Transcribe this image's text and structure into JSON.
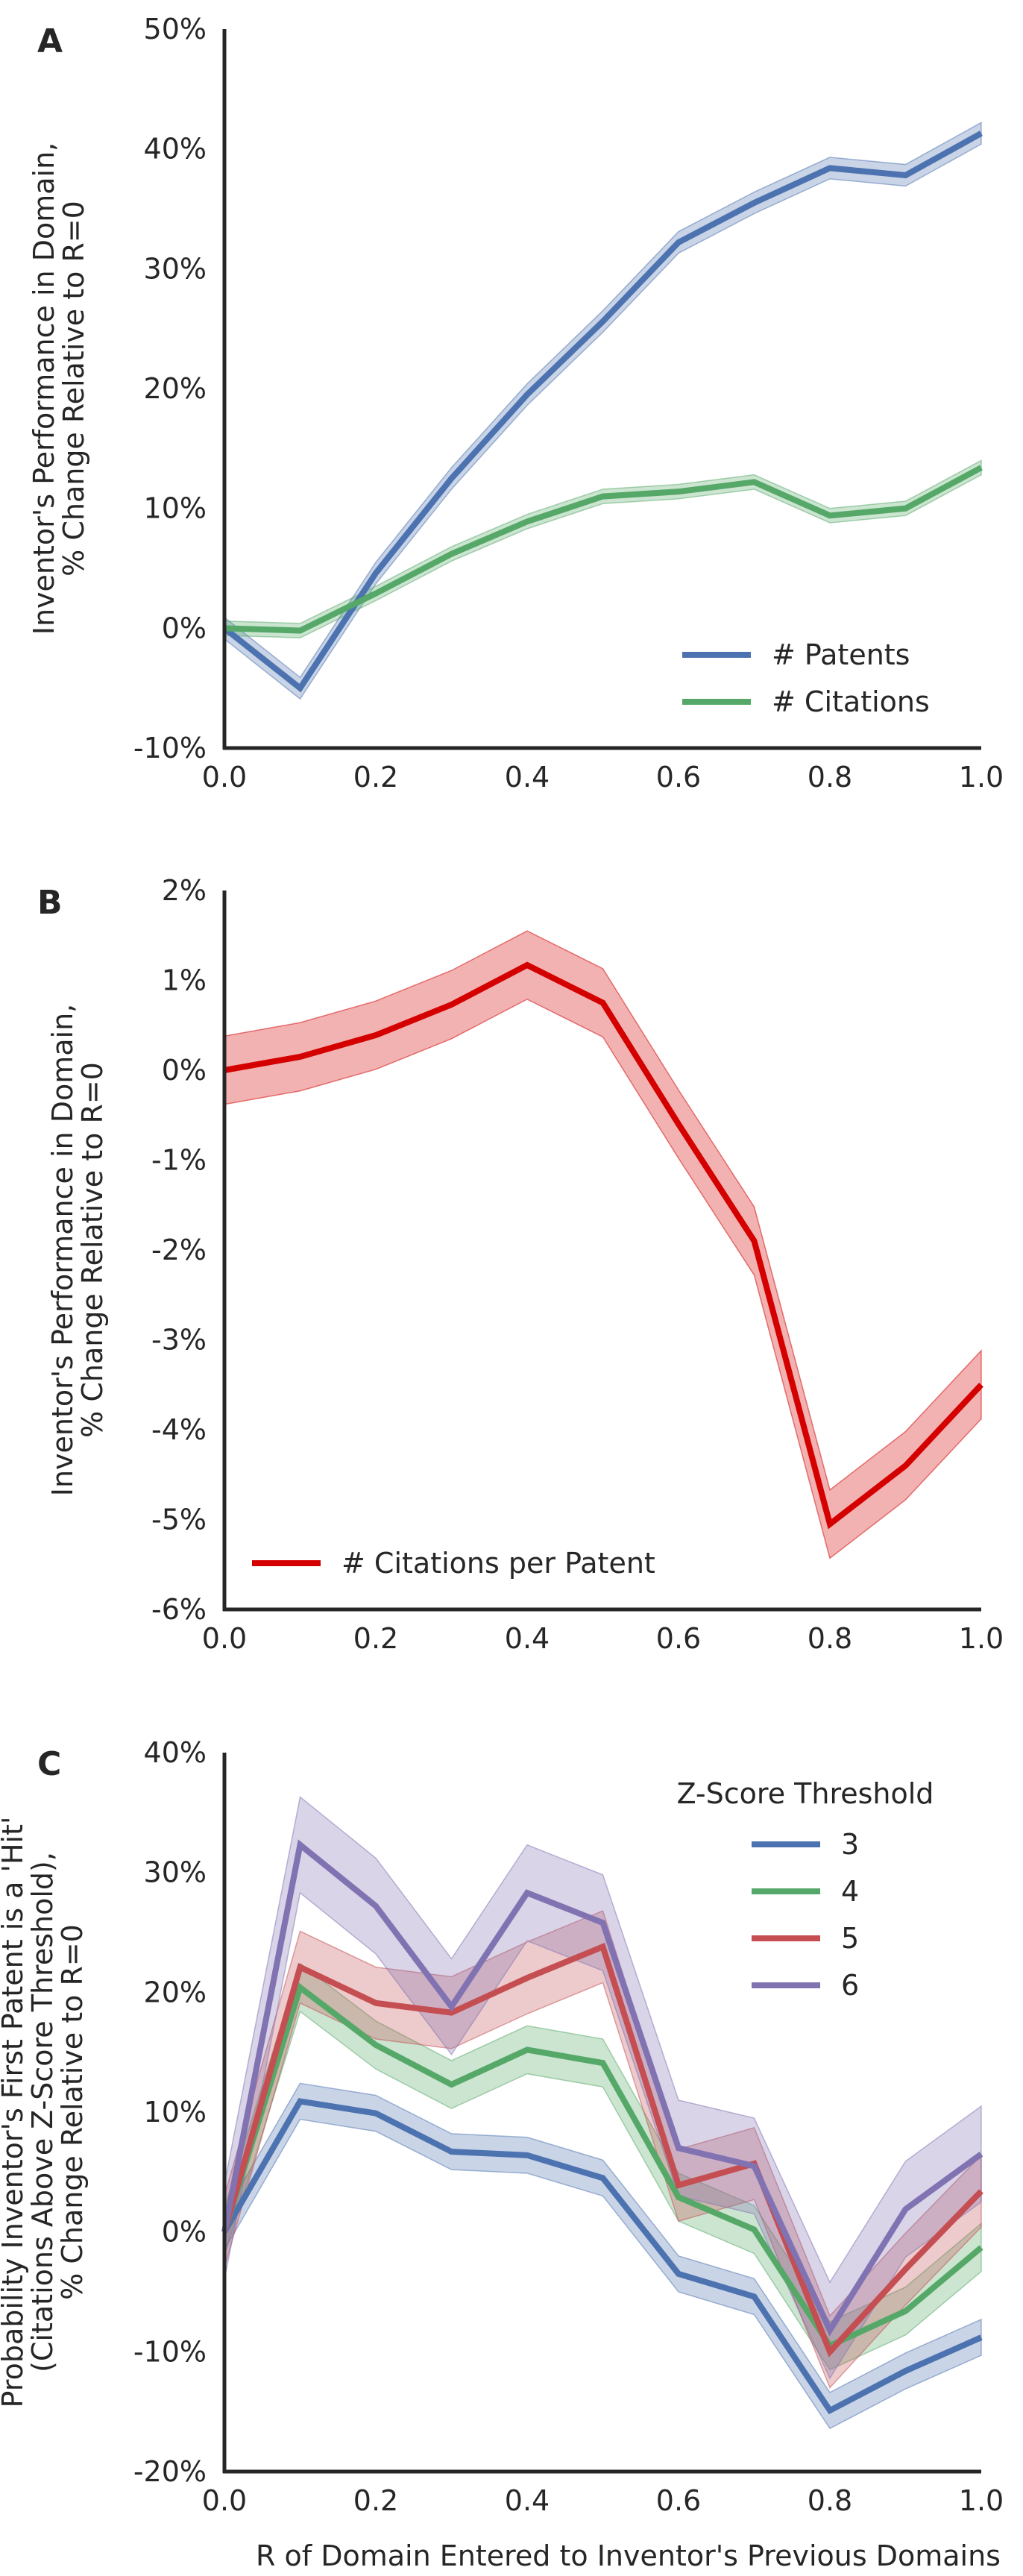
{
  "chart_data": [
    {
      "panel_label": "A",
      "type": "line",
      "ylabel": [
        "Inventor's Performance in Domain,",
        "% Change Relative to R=0"
      ],
      "xlim": [
        0.0,
        1.0
      ],
      "ylim": [
        -10,
        50
      ],
      "xticks": [
        "0.0",
        "0.2",
        "0.4",
        "0.6",
        "0.8",
        "1.0"
      ],
      "yticks": [
        "-10%",
        "0%",
        "10%",
        "20%",
        "30%",
        "40%",
        "50%"
      ],
      "legend_placement": "lower-right",
      "x": [
        0.0,
        0.1,
        0.2,
        0.3,
        0.4,
        0.5,
        0.6,
        0.7,
        0.8,
        0.9,
        1.0
      ],
      "series": [
        {
          "name": "# Patents",
          "color": "#4c72b0",
          "values": [
            0.0,
            -5.0,
            4.6,
            12.5,
            19.5,
            25.6,
            32.2,
            35.5,
            38.4,
            37.8,
            41.3
          ],
          "band": 0.9
        },
        {
          "name": "# Citations",
          "color": "#55a868",
          "values": [
            0.0,
            -0.2,
            2.9,
            6.2,
            8.9,
            11.0,
            11.4,
            12.2,
            9.4,
            10.0,
            13.4
          ],
          "band": 0.6
        }
      ]
    },
    {
      "panel_label": "B",
      "type": "line",
      "ylabel": [
        "Inventor's Performance in Domain,",
        "% Change Relative to R=0"
      ],
      "xlim": [
        0.0,
        1.0
      ],
      "ylim": [
        -6,
        2
      ],
      "xticks": [
        "0.0",
        "0.2",
        "0.4",
        "0.6",
        "0.8",
        "1.0"
      ],
      "yticks": [
        "-6%",
        "-5%",
        "-4%",
        "-3%",
        "-2%",
        "-1%",
        "0%",
        "1%",
        "2%"
      ],
      "legend_placement": "lower-left",
      "x": [
        0.0,
        0.1,
        0.2,
        0.3,
        0.4,
        0.5,
        0.6,
        0.7,
        0.8,
        0.9,
        1.0
      ],
      "series": [
        {
          "name": "# Citations per Patent",
          "color": "#d40000",
          "values": [
            0.0,
            0.15,
            0.39,
            0.73,
            1.17,
            0.75,
            -0.6,
            -1.9,
            -5.05,
            -4.4,
            -3.5
          ],
          "band": 0.38
        }
      ]
    },
    {
      "panel_label": "C",
      "type": "line",
      "xlabel": "R of Domain Entered to Inventor's Previous Domains",
      "ylabel": [
        "Probability Inventor's First Patent is a 'Hit'",
        "(Citations Above Z-Score Threshold),",
        "% Change Relative to R=0"
      ],
      "xlim": [
        0.0,
        1.0
      ],
      "ylim": [
        -20,
        40
      ],
      "xticks": [
        "0.0",
        "0.2",
        "0.4",
        "0.6",
        "0.8",
        "1.0"
      ],
      "yticks": [
        "-20%",
        "-10%",
        "0%",
        "10%",
        "20%",
        "30%",
        "40%"
      ],
      "legend_title": "Z-Score Threshold",
      "legend_placement": "upper-right",
      "x": [
        0.0,
        0.1,
        0.2,
        0.3,
        0.4,
        0.5,
        0.6,
        0.7,
        0.8,
        0.9,
        1.0
      ],
      "series": [
        {
          "name": "3",
          "color": "#4c72b0",
          "values": [
            0.0,
            10.9,
            9.9,
            6.7,
            6.4,
            4.5,
            -3.5,
            -5.4,
            -14.9,
            -11.6,
            -8.8
          ],
          "band": 1.5
        },
        {
          "name": "4",
          "color": "#55a868",
          "values": [
            0.0,
            20.4,
            15.6,
            12.3,
            15.2,
            14.1,
            2.9,
            0.2,
            -9.5,
            -6.6,
            -1.3
          ],
          "band": 2.0
        },
        {
          "name": "5",
          "color": "#c44e52",
          "values": [
            0.0,
            22.1,
            19.1,
            18.3,
            21.2,
            23.8,
            3.9,
            5.7,
            -10.0,
            -3.1,
            3.4
          ],
          "band": 3.0
        },
        {
          "name": "6",
          "color": "#8172b2",
          "values": [
            0.0,
            32.3,
            27.2,
            18.8,
            28.3,
            25.8,
            7.0,
            5.5,
            -8.2,
            1.9,
            6.5
          ],
          "band": 4.0
        }
      ]
    }
  ]
}
